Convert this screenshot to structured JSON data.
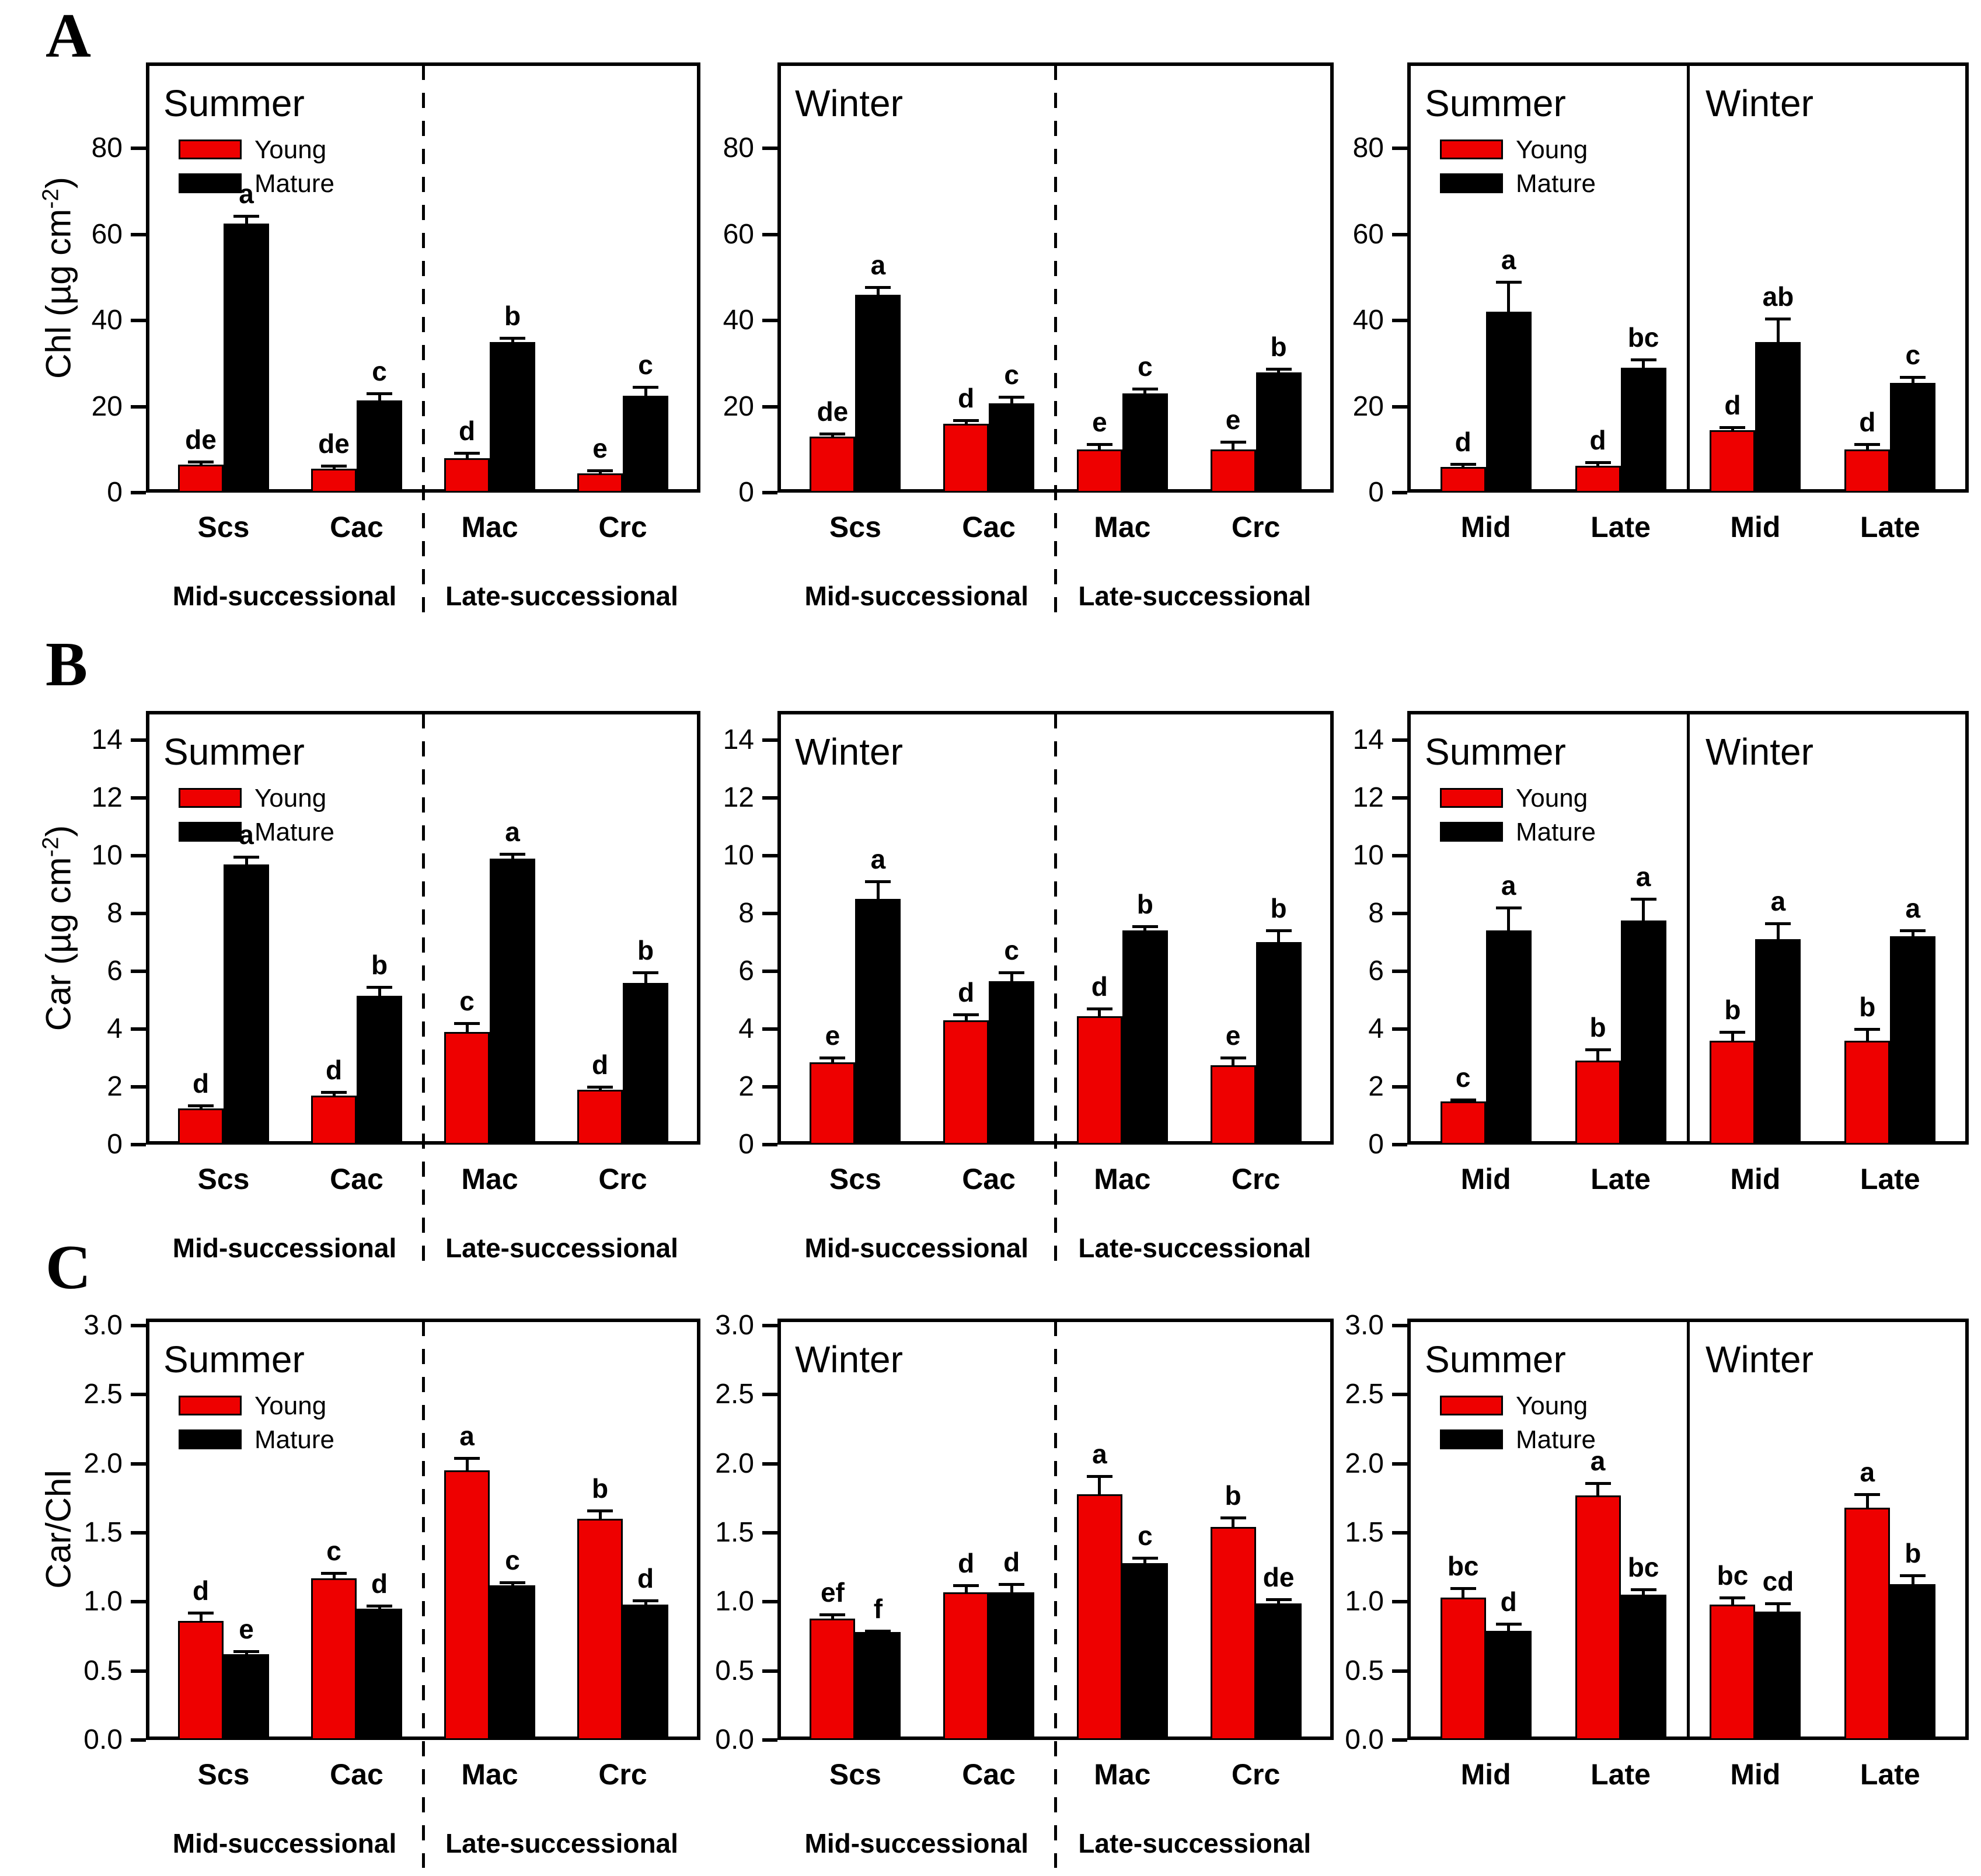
{
  "legend": {
    "young_label": "Young",
    "mature_label": "Mature"
  },
  "colors": {
    "young": "#ee0000",
    "mature": "#000000",
    "axis": "#000000"
  },
  "chart_data": [
    {
      "id": "A",
      "type": "bar",
      "ylabel": {
        "pre": "Chl (µg cm",
        "sup": "-2",
        "post": ")"
      },
      "ylim": [
        0,
        100
      ],
      "yticks": [
        0,
        20,
        40,
        60,
        80
      ],
      "ytick_labels": [
        "0",
        "20",
        "40",
        "60",
        "80"
      ],
      "panels": [
        {
          "season_labels": [
            "Summer"
          ],
          "legend": true,
          "divider": "dashed",
          "categories": [
            "Scs",
            "Cac",
            "Mac",
            "Crc"
          ],
          "group_labels": [
            "Mid-successional",
            "Late-successional"
          ],
          "series": [
            {
              "name": "Young",
              "values": [
                6.5,
                5.5,
                8,
                4.5
              ],
              "errors": [
                0.7,
                0.7,
                1.2,
                0.6
              ],
              "sig": [
                "de",
                "de",
                "d",
                "e"
              ]
            },
            {
              "name": "Mature",
              "values": [
                62.5,
                21.5,
                35,
                22.5
              ],
              "errors": [
                1.8,
                1.5,
                1,
                2
              ],
              "sig": [
                "a",
                "c",
                "b",
                "c"
              ]
            }
          ]
        },
        {
          "season_labels": [
            "Winter"
          ],
          "legend": false,
          "divider": "dashed",
          "categories": [
            "Scs",
            "Cac",
            "Mac",
            "Crc"
          ],
          "group_labels": [
            "Mid-successional",
            "Late-successional"
          ],
          "series": [
            {
              "name": "Young",
              "values": [
                13,
                16,
                10,
                10
              ],
              "errors": [
                0.7,
                0.8,
                1.2,
                1.8
              ],
              "sig": [
                "de",
                "d",
                "e",
                "e"
              ]
            },
            {
              "name": "Mature",
              "values": [
                46,
                20.8,
                23,
                28
              ],
              "errors": [
                1.8,
                1.5,
                1.2,
                0.8
              ],
              "sig": [
                "a",
                "c",
                "c",
                "b"
              ]
            }
          ]
        },
        {
          "season_labels": [
            "Summer",
            "Winter"
          ],
          "legend": true,
          "divider": "solid",
          "categories": [
            "Mid",
            "Late",
            "Mid",
            "Late"
          ],
          "group_labels": [],
          "series": [
            {
              "name": "Young",
              "values": [
                6,
                6.2,
                14.5,
                10
              ],
              "errors": [
                0.6,
                0.9,
                0.7,
                1.2
              ],
              "sig": [
                "d",
                "d",
                "d",
                "d"
              ]
            },
            {
              "name": "Mature",
              "values": [
                42,
                29,
                35,
                25.5
              ],
              "errors": [
                7,
                2,
                5.5,
                1.3
              ],
              "sig": [
                "a",
                "bc",
                "ab",
                "c"
              ]
            }
          ]
        }
      ]
    },
    {
      "id": "B",
      "type": "bar",
      "ylabel": {
        "pre": "Car (µg cm",
        "sup": "-2",
        "post": ")"
      },
      "ylim": [
        0,
        15
      ],
      "yticks": [
        0,
        2,
        4,
        6,
        8,
        10,
        12,
        14
      ],
      "ytick_labels": [
        "0",
        "2",
        "4",
        "6",
        "8",
        "10",
        "12",
        "14"
      ],
      "panels": [
        {
          "season_labels": [
            "Summer"
          ],
          "legend": true,
          "divider": "dashed",
          "categories": [
            "Scs",
            "Cac",
            "Mac",
            "Crc"
          ],
          "group_labels": [
            "Mid-successional",
            "Late-successional"
          ],
          "series": [
            {
              "name": "Young",
              "values": [
                1.25,
                1.7,
                3.9,
                1.9
              ],
              "errors": [
                0.1,
                0.12,
                0.3,
                0.1
              ],
              "sig": [
                "d",
                "d",
                "c",
                "d"
              ]
            },
            {
              "name": "Mature",
              "values": [
                9.7,
                5.15,
                9.9,
                5.6
              ],
              "errors": [
                0.25,
                0.3,
                0.15,
                0.35
              ],
              "sig": [
                "a",
                "b",
                "a",
                "b"
              ]
            }
          ]
        },
        {
          "season_labels": [
            "Winter"
          ],
          "legend": false,
          "divider": "dashed",
          "categories": [
            "Scs",
            "Cac",
            "Mac",
            "Crc"
          ],
          "group_labels": [
            "Mid-successional",
            "Late-successional"
          ],
          "series": [
            {
              "name": "Young",
              "values": [
                2.85,
                4.3,
                4.45,
                2.75
              ],
              "errors": [
                0.15,
                0.2,
                0.25,
                0.25
              ],
              "sig": [
                "e",
                "d",
                "d",
                "e"
              ]
            },
            {
              "name": "Mature",
              "values": [
                8.5,
                5.65,
                7.4,
                7.0
              ],
              "errors": [
                0.6,
                0.3,
                0.15,
                0.4
              ],
              "sig": [
                "a",
                "c",
                "b",
                "b"
              ]
            }
          ]
        },
        {
          "season_labels": [
            "Summer",
            "Winter"
          ],
          "legend": true,
          "divider": "solid",
          "categories": [
            "Mid",
            "Late",
            "Mid",
            "Late"
          ],
          "group_labels": [],
          "series": [
            {
              "name": "Young",
              "values": [
                1.5,
                2.9,
                3.6,
                3.6
              ],
              "errors": [
                0.06,
                0.4,
                0.3,
                0.4
              ],
              "sig": [
                "c",
                "b",
                "b",
                "b"
              ]
            },
            {
              "name": "Mature",
              "values": [
                7.4,
                7.75,
                7.1,
                7.2
              ],
              "errors": [
                0.8,
                0.75,
                0.55,
                0.2
              ],
              "sig": [
                "a",
                "a",
                "a",
                "a"
              ]
            }
          ]
        }
      ]
    },
    {
      "id": "C",
      "type": "bar",
      "ylabel": {
        "pre": "Car/Chl",
        "sup": "",
        "post": ""
      },
      "ylim": [
        0,
        3.05
      ],
      "yticks": [
        0,
        0.5,
        1,
        1.5,
        2,
        2.5,
        3
      ],
      "ytick_labels": [
        "0.0",
        "0.5",
        "1.0",
        "1.5",
        "2.0",
        "2.5",
        "3.0"
      ],
      "panels": [
        {
          "season_labels": [
            "Summer"
          ],
          "legend": true,
          "divider": "dashed",
          "categories": [
            "Scs",
            "Cac",
            "Mac",
            "Crc"
          ],
          "group_labels": [
            "Mid-successional",
            "Late-successional"
          ],
          "series": [
            {
              "name": "Young",
              "values": [
                0.86,
                1.17,
                1.95,
                1.6
              ],
              "errors": [
                0.06,
                0.04,
                0.09,
                0.06
              ],
              "sig": [
                "d",
                "c",
                "a",
                "b"
              ]
            },
            {
              "name": "Mature",
              "values": [
                0.62,
                0.95,
                1.12,
                0.98
              ],
              "errors": [
                0.02,
                0.02,
                0.02,
                0.03
              ],
              "sig": [
                "e",
                "d",
                "c",
                "d"
              ]
            }
          ]
        },
        {
          "season_labels": [
            "Winter"
          ],
          "legend": false,
          "divider": "dashed",
          "categories": [
            "Scs",
            "Cac",
            "Mac",
            "Crc"
          ],
          "group_labels": [
            "Mid-successional",
            "Late-successional"
          ],
          "series": [
            {
              "name": "Young",
              "values": [
                0.88,
                1.07,
                1.78,
                1.54
              ],
              "errors": [
                0.03,
                0.05,
                0.13,
                0.07
              ],
              "sig": [
                "ef",
                "d",
                "a",
                "b"
              ]
            },
            {
              "name": "Mature",
              "values": [
                0.78,
                1.07,
                1.28,
                0.99
              ],
              "errors": [
                0.01,
                0.06,
                0.04,
                0.03
              ],
              "sig": [
                "f",
                "d",
                "c",
                "de"
              ]
            }
          ]
        },
        {
          "season_labels": [
            "Summer",
            "Winter"
          ],
          "legend": true,
          "divider": "solid",
          "categories": [
            "Mid",
            "Late",
            "Mid",
            "Late"
          ],
          "group_labels": [],
          "series": [
            {
              "name": "Young",
              "values": [
                1.03,
                1.77,
                0.98,
                1.68
              ],
              "errors": [
                0.07,
                0.09,
                0.05,
                0.1
              ],
              "sig": [
                "bc",
                "a",
                "bc",
                "a"
              ]
            },
            {
              "name": "Mature",
              "values": [
                0.79,
                1.05,
                0.93,
                1.13
              ],
              "errors": [
                0.05,
                0.04,
                0.06,
                0.06
              ],
              "sig": [
                "d",
                "bc",
                "cd",
                "b"
              ]
            }
          ]
        }
      ]
    }
  ]
}
